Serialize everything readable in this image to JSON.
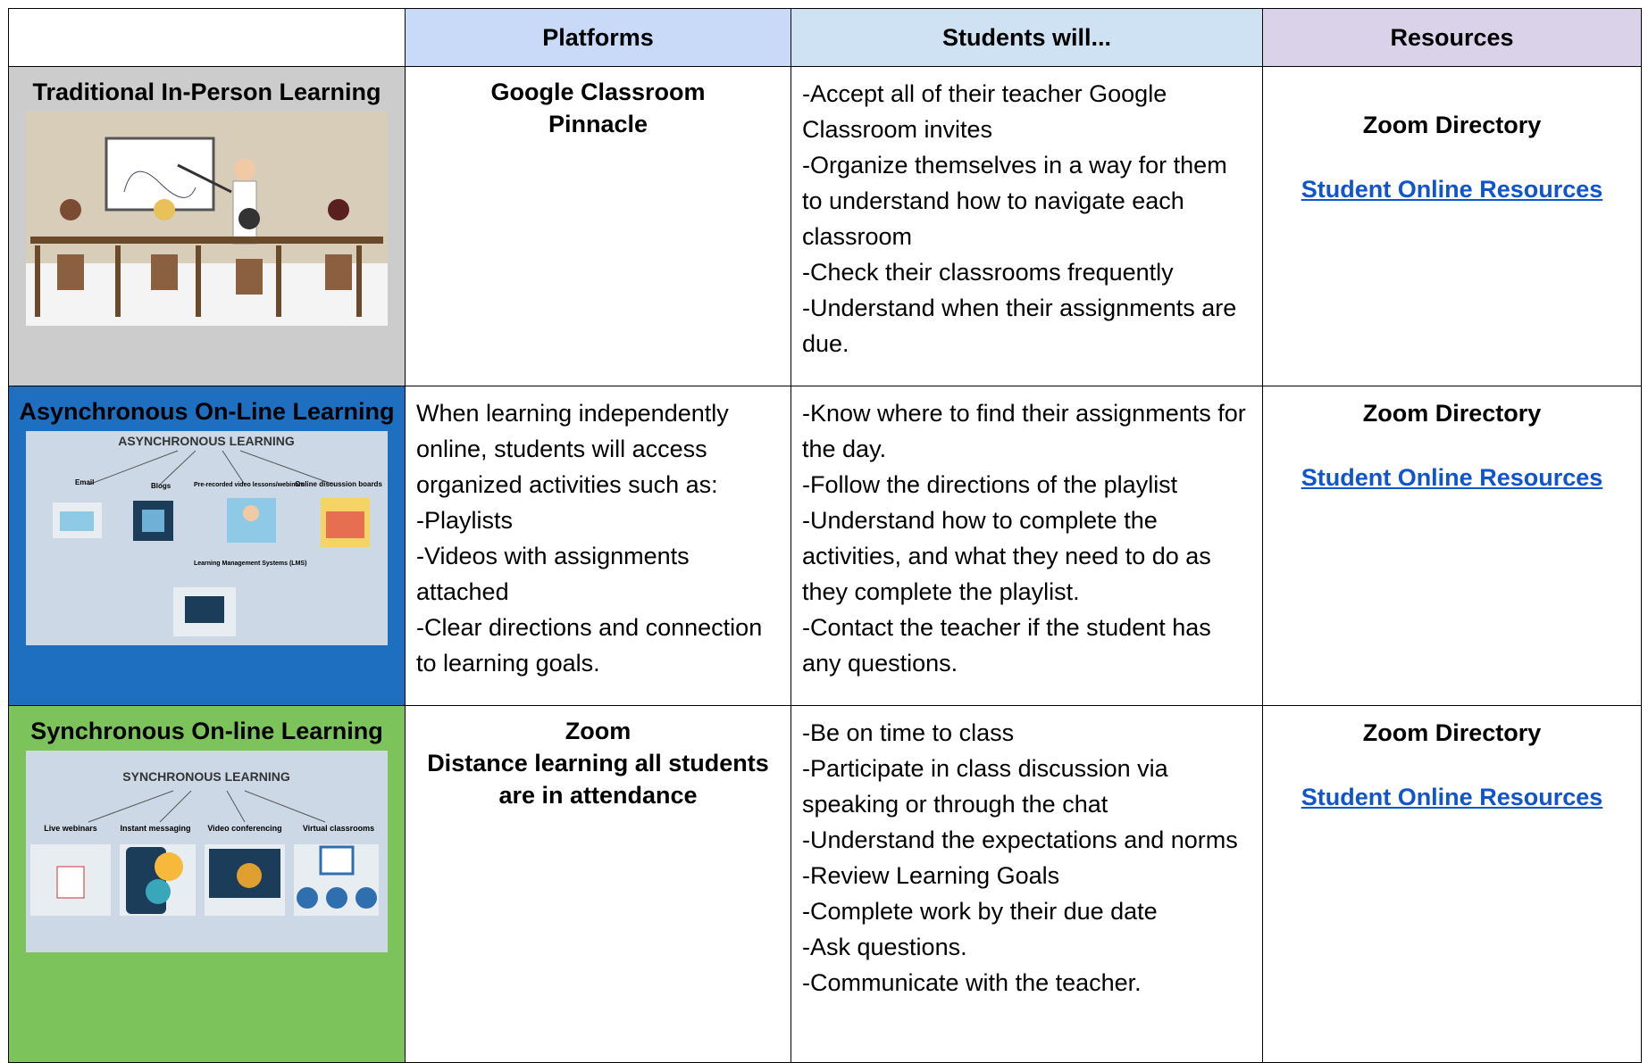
{
  "header": {
    "columns": [
      "Platforms",
      "Students will...",
      "Resources"
    ]
  },
  "rows": [
    {
      "title": "Traditional In-Person Learning",
      "platforms": [
        "Google Classroom",
        "Pinnacle"
      ],
      "students": [
        "-Accept all of their teacher Google Classroom invites",
        "-Organize themselves in a way for them to understand how to navigate each classroom",
        "-Check their classrooms frequently",
        "-Understand when their assignments are due."
      ],
      "resources": {
        "directory": "Zoom Directory",
        "link": "Student Online Resources"
      }
    },
    {
      "title": "Asynchronous On-Line Learning",
      "image": {
        "heading": "ASYNCHRONOUS LEARNING",
        "labels": [
          "Email",
          "Blogs",
          "Pre-recorded video lessons/webinars",
          "Online discussion boards",
          "Learning Management Systems (LMS)"
        ]
      },
      "platforms": [
        "When learning independently online, students will access organized activities such as:",
        "-Playlists",
        "-Videos with assignments attached",
        "-Clear directions and connection to learning goals."
      ],
      "students": [
        "-Know where to find their assignments for the day.",
        "-Follow the directions of the playlist",
        "-Understand how to complete the activities, and what they need to do as they complete the playlist.",
        "-Contact the teacher if the student has any questions."
      ],
      "resources": {
        "directory": "Zoom Directory",
        "link": "Student Online Resources"
      }
    },
    {
      "title": "Synchronous On-line Learning",
      "image": {
        "heading": "SYNCHRONOUS LEARNING",
        "labels": [
          "Live webinars",
          "Instant messaging",
          "Video conferencing",
          "Virtual classrooms"
        ]
      },
      "platforms": [
        "Zoom",
        "Distance learning all students are in attendance"
      ],
      "students": [
        "-Be on time to class",
        "-Participate in class discussion via speaking or through the chat",
        "-Understand the expectations and norms",
        "-Review Learning Goals",
        "-Complete work by their due date",
        "-Ask questions.",
        "-Communicate with the teacher."
      ],
      "resources": {
        "directory": "Zoom Directory",
        "link": "Student Online Resources"
      }
    }
  ]
}
